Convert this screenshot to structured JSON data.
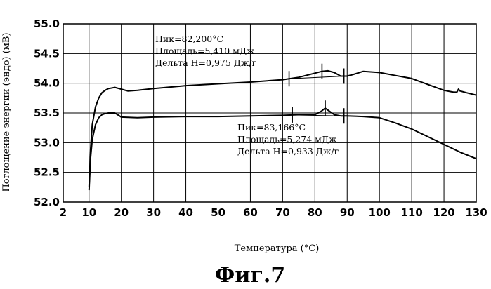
{
  "chart_data": {
    "type": "line",
    "ylabel": "Поглощение энергии (эндо) (мВ)",
    "xlabel": "Температура (°С)",
    "caption": "Фиг.7",
    "xlim": [
      2,
      130
    ],
    "ylim": [
      52.0,
      55.0
    ],
    "x_ticks": [
      2,
      10,
      20,
      30,
      40,
      50,
      60,
      70,
      80,
      90,
      100,
      110,
      120,
      130
    ],
    "y_ticks": [
      52.0,
      52.5,
      53.0,
      53.5,
      54.0,
      54.5,
      55.0
    ],
    "x_tick_labels": [
      "2",
      "10",
      "20",
      "30",
      "40",
      "50",
      "60",
      "70",
      "80",
      "90",
      "100",
      "110",
      "120",
      "130"
    ],
    "y_tick_labels": [
      "52.0",
      "52.5",
      "53.0",
      "53.5",
      "54.0",
      "54.5",
      "55.0"
    ],
    "grid": true,
    "series": [
      {
        "x": [
          10,
          10.5,
          11,
          12,
          13,
          14,
          15,
          16,
          18,
          20,
          22,
          25,
          30,
          40,
          50,
          60,
          70,
          75,
          80,
          82.2,
          84,
          86,
          88,
          90,
          92,
          95,
          100,
          105,
          110,
          115,
          120,
          123,
          124,
          124.5,
          125,
          127,
          130
        ],
        "y": [
          52.25,
          52.9,
          53.3,
          53.6,
          53.75,
          53.84,
          53.88,
          53.91,
          53.93,
          53.9,
          53.87,
          53.88,
          53.91,
          53.96,
          53.99,
          54.02,
          54.06,
          54.1,
          54.17,
          54.2,
          54.21,
          54.18,
          54.12,
          54.12,
          54.15,
          54.2,
          54.18,
          54.13,
          54.08,
          53.98,
          53.88,
          53.85,
          53.85,
          53.9,
          53.87,
          53.84,
          53.8
        ]
      },
      {
        "x": [
          10,
          10.5,
          11,
          12,
          13,
          14,
          15,
          16,
          18,
          20,
          25,
          30,
          40,
          50,
          60,
          70,
          75,
          78,
          80,
          82,
          83.2,
          84.5,
          86,
          88,
          90,
          95,
          100,
          105,
          110,
          115,
          120,
          125,
          130
        ],
        "y": [
          52.2,
          52.75,
          53.05,
          53.3,
          53.42,
          53.47,
          53.49,
          53.5,
          53.5,
          53.43,
          53.42,
          53.43,
          53.44,
          53.44,
          53.45,
          53.46,
          53.47,
          53.47,
          53.47,
          53.53,
          53.58,
          53.53,
          53.47,
          53.45,
          53.45,
          53.44,
          53.42,
          53.33,
          53.23,
          53.1,
          52.97,
          52.84,
          52.73
        ]
      }
    ],
    "annotations": [
      {
        "lines": [
          "Пик=82,200°С",
          "Площадь=5,410 мДж",
          "Дельта Н=0,975 Дж/г"
        ],
        "integration_x": [
          72,
          82.2,
          89
        ]
      },
      {
        "lines": [
          "Пик=83,166°С",
          "Площадь=5,274 мДж",
          "Дельта Н=0,933 Дж/г"
        ],
        "integration_x": [
          73,
          83.2,
          89
        ]
      }
    ]
  }
}
